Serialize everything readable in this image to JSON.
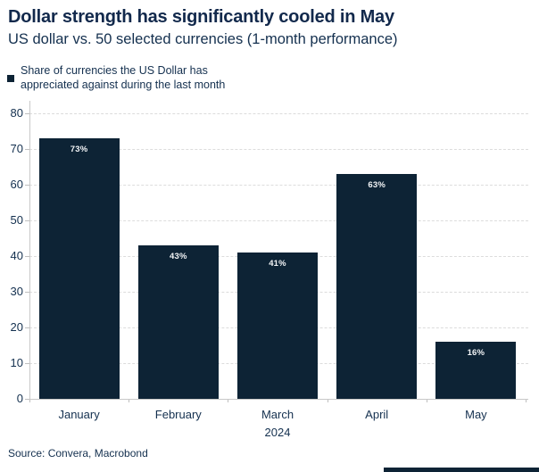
{
  "header": {
    "title": "Dollar strength has significantly cooled in May",
    "subtitle": "US dollar vs. 50 selected currencies (1-month performance)"
  },
  "legend": {
    "label": "Share of currencies the US Dollar has appreciated against during the last month",
    "marker_color": "#0d2335"
  },
  "chart_data": {
    "type": "bar",
    "categories": [
      "January",
      "February",
      "March",
      "April",
      "May"
    ],
    "values": [
      73,
      43,
      41,
      63,
      16
    ],
    "bar_labels": [
      "73%",
      "43%",
      "41%",
      "63%",
      "16%"
    ],
    "title": "Dollar strength has significantly cooled in May",
    "subtitle": "US dollar vs. 50 selected currencies (1-month performance)",
    "legend": [
      "Share of currencies the US Dollar has appreciated against during the last month"
    ],
    "legend_position": "top-left",
    "xlabel": "2024",
    "ylabel": "",
    "ylim": [
      0,
      80
    ],
    "yticks": [
      0,
      10,
      20,
      30,
      40,
      50,
      60,
      70,
      80
    ],
    "grid": "horizontal-dashed",
    "bar_color": "#0d2335",
    "bar_label_color": "#f2f4f6"
  },
  "footer": {
    "source": "Source: Convera, Macrobond"
  },
  "colors": {
    "navy": "#0d2335",
    "text": "#14304f",
    "grid": "#dcdcdc",
    "axis": "#c8c8c8"
  }
}
